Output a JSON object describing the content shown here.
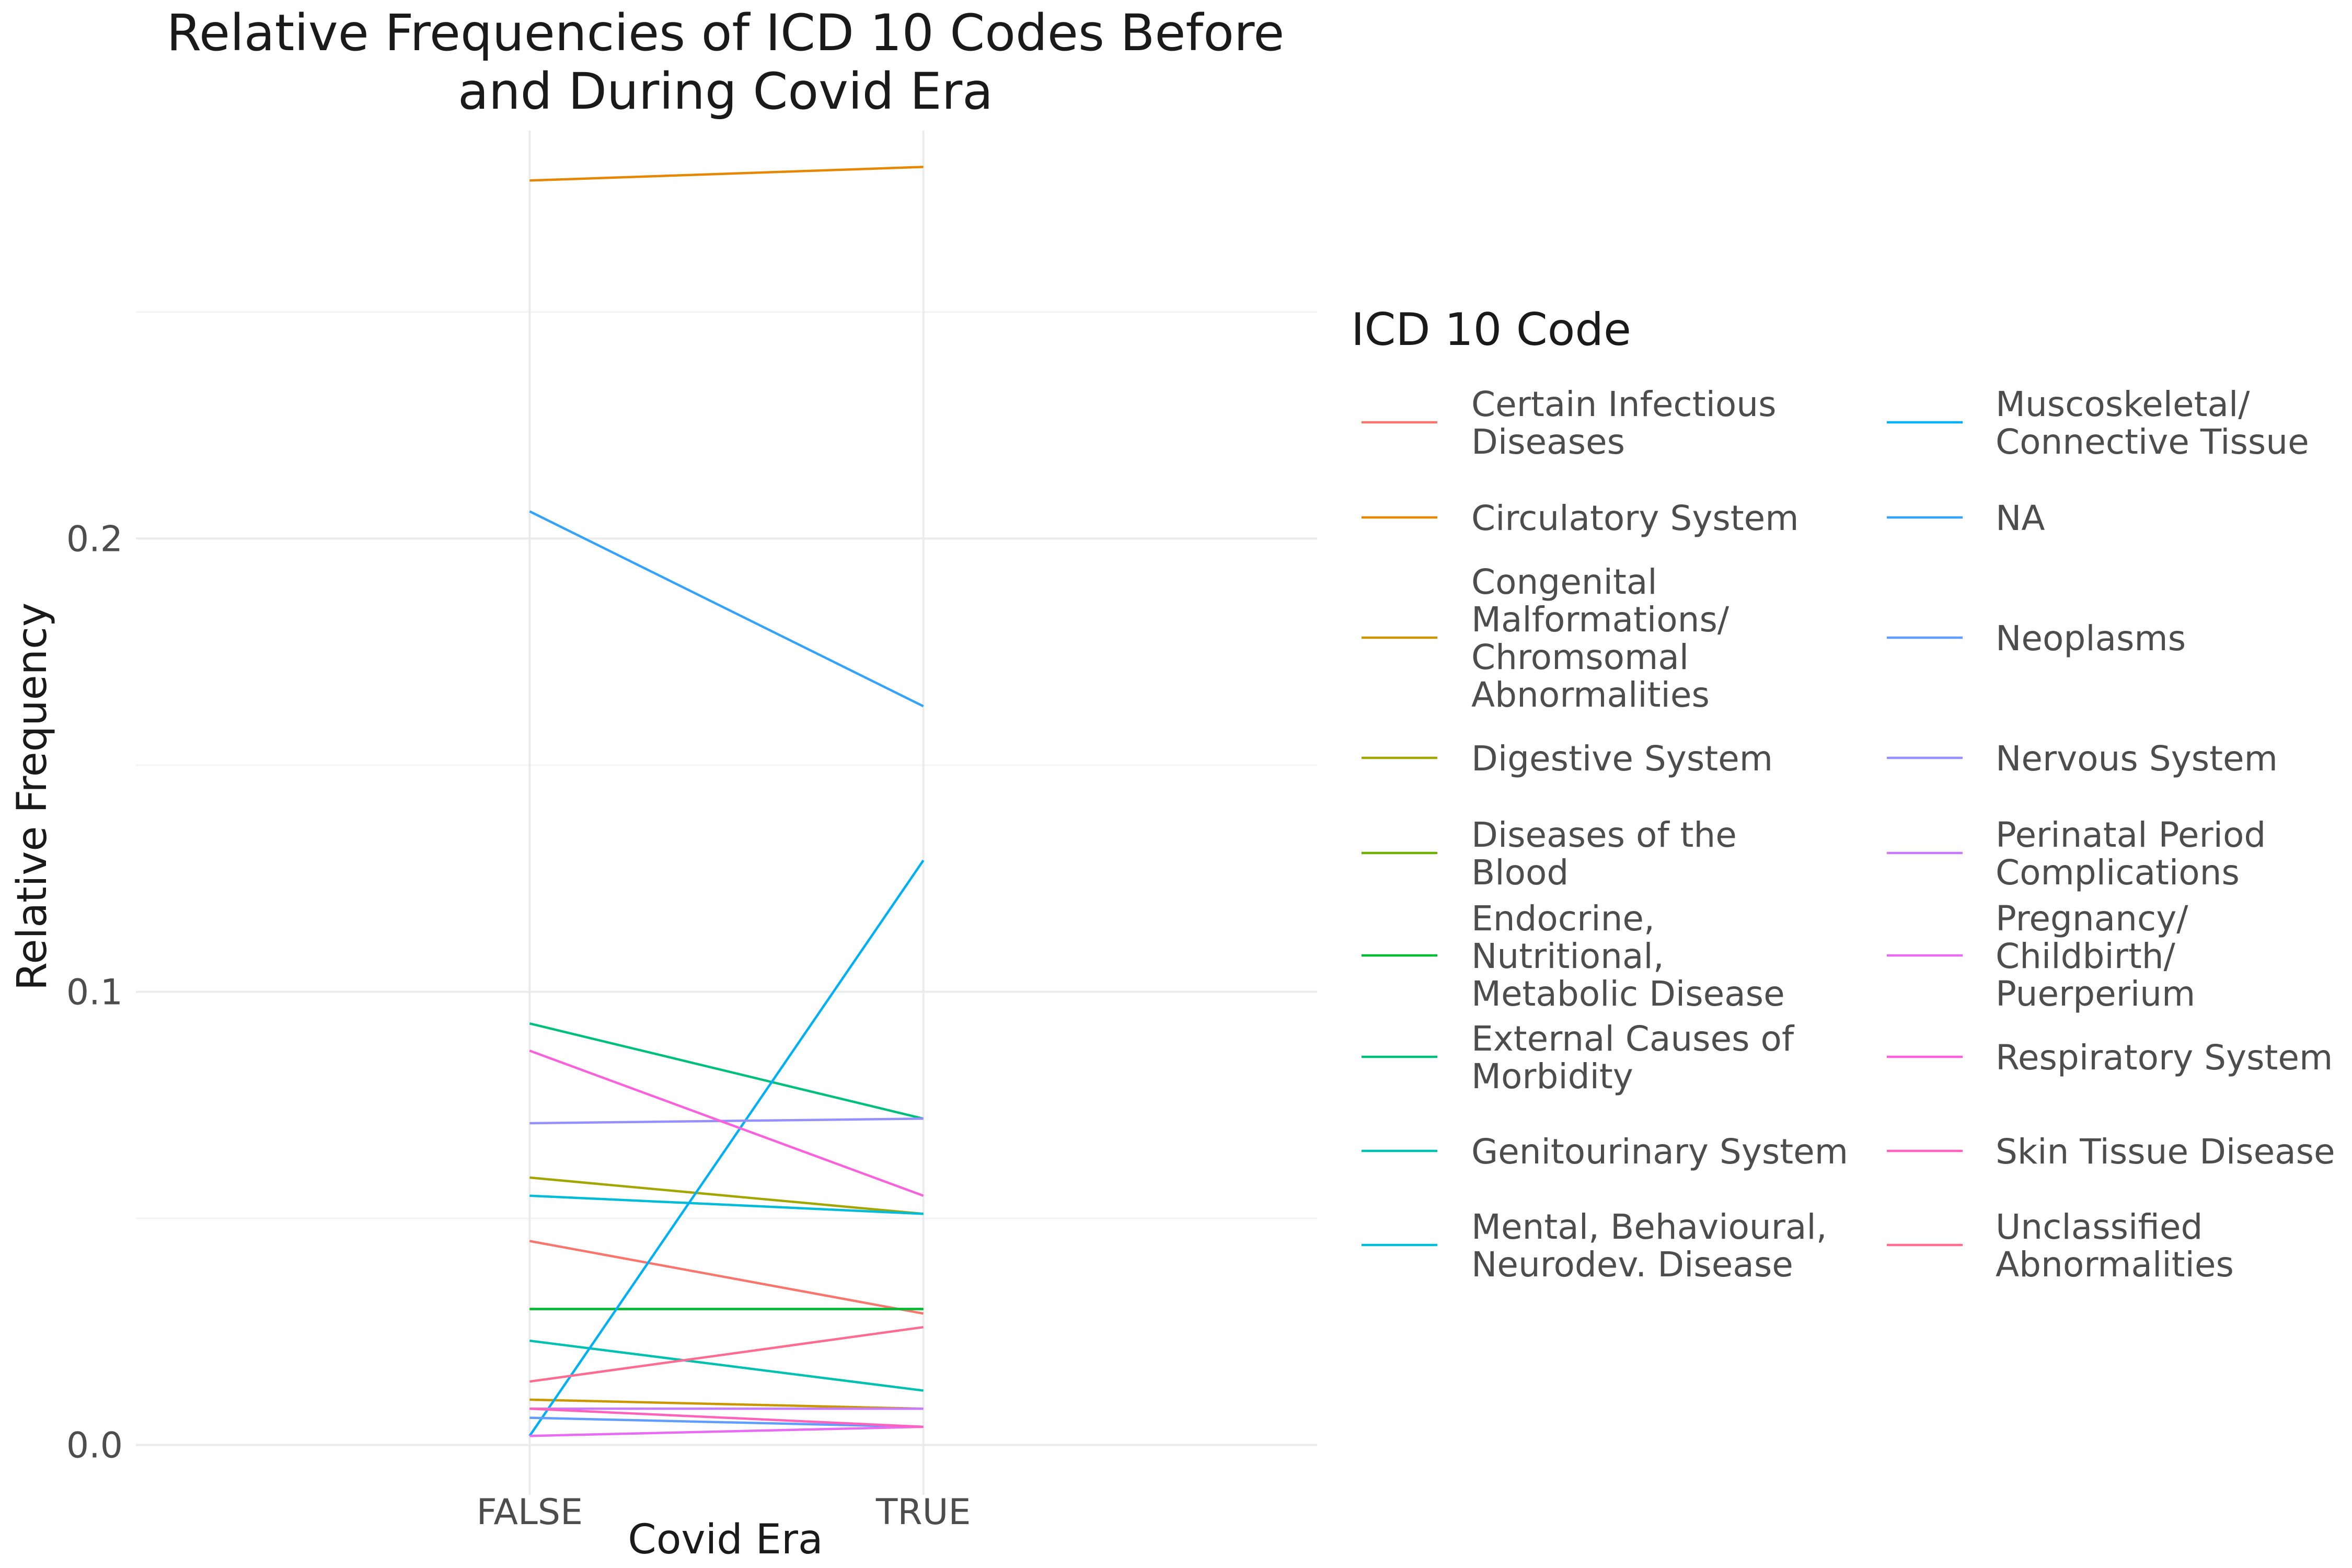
{
  "chart_data": {
    "type": "line",
    "title": "Relative Frequencies of ICD 10 Codes Before and During Covid Era",
    "title_lines": [
      "Relative Frequencies of ICD 10 Codes Before",
      "and During Covid Era"
    ],
    "xlabel": "Covid Era",
    "ylabel": "Relative Frequency",
    "x": [
      "FALSE",
      "TRUE"
    ],
    "ylim": [
      -0.011,
      0.29
    ],
    "y_ticks": [
      0.0,
      0.1,
      0.2
    ],
    "y_tick_labels": [
      "0.0",
      "0.1",
      "0.2"
    ],
    "grid": true,
    "legend": {
      "title": "ICD 10 Code",
      "placement": "right",
      "columns": 2
    },
    "series": [
      {
        "name": "Certain Infectious Diseases",
        "label_lines": [
          "Certain Infectious",
          "Diseases"
        ],
        "color": "#F8766D",
        "values": [
          0.045,
          0.029
        ]
      },
      {
        "name": "Circulatory System",
        "label_lines": [
          "Circulatory System"
        ],
        "color": "#E58700",
        "values": [
          0.279,
          0.282
        ]
      },
      {
        "name": "Congenital Malformations/ Chromsomal Abnormalities",
        "label_lines": [
          "Congenital",
          "Malformations/",
          "Chromsomal",
          "Abnormalities"
        ],
        "color": "#C99800",
        "values": [
          0.01,
          0.008
        ]
      },
      {
        "name": "Digestive System",
        "label_lines": [
          "Digestive System"
        ],
        "color": "#A3A500",
        "values": [
          0.059,
          0.051
        ]
      },
      {
        "name": "Diseases of the Blood",
        "label_lines": [
          "Diseases of the",
          "Blood"
        ],
        "color": "#6BB100",
        "values": [
          0.03,
          0.03
        ]
      },
      {
        "name": "Endocrine, Nutritional, Metabolic Disease",
        "label_lines": [
          "Endocrine,",
          "Nutritional,",
          "Metabolic Disease"
        ],
        "color": "#00BA38",
        "values": [
          0.03,
          0.03
        ]
      },
      {
        "name": "External Causes of Morbidity",
        "label_lines": [
          "External Causes of",
          "Morbidity"
        ],
        "color": "#00BF7D",
        "values": [
          0.093,
          0.072
        ]
      },
      {
        "name": "Genitourinary System",
        "label_lines": [
          "Genitourinary System"
        ],
        "color": "#00C0AF",
        "values": [
          0.023,
          0.012
        ]
      },
      {
        "name": "Mental, Behavioural, Neurodev. Disease",
        "label_lines": [
          "Mental, Behavioural,",
          "Neurodev. Disease"
        ],
        "color": "#00BCD8",
        "values": [
          0.055,
          0.051
        ]
      },
      {
        "name": "Muscoskeletal/ Connective Tissue",
        "label_lines": [
          "Muscoskeletal/",
          "Connective Tissue"
        ],
        "color": "#00B0F6",
        "values": [
          0.002,
          0.129
        ]
      },
      {
        "name": "NA",
        "label_lines": [
          "NA"
        ],
        "color": "#35A2FF",
        "values": [
          0.206,
          0.163
        ]
      },
      {
        "name": "Neoplasms",
        "label_lines": [
          "Neoplasms"
        ],
        "color": "#619CFF",
        "values": [
          0.006,
          0.004
        ]
      },
      {
        "name": "Nervous System",
        "label_lines": [
          "Nervous System"
        ],
        "color": "#9590FF",
        "values": [
          0.071,
          0.072
        ]
      },
      {
        "name": "Perinatal Period Complications",
        "label_lines": [
          "Perinatal Period",
          "Complications"
        ],
        "color": "#C77CFF",
        "values": [
          0.008,
          0.008
        ]
      },
      {
        "name": "Pregnancy/ Childbirth/ Puerperium",
        "label_lines": [
          "Pregnancy/",
          "Childbirth/",
          "Puerperium"
        ],
        "color": "#E76BF3",
        "values": [
          0.002,
          0.004
        ]
      },
      {
        "name": "Respiratory System",
        "label_lines": [
          "Respiratory System"
        ],
        "color": "#FA62DB",
        "values": [
          0.087,
          0.055
        ]
      },
      {
        "name": "Skin Tissue Disease",
        "label_lines": [
          "Skin Tissue Disease"
        ],
        "color": "#FF62BC",
        "values": [
          0.008,
          0.004
        ]
      },
      {
        "name": "Unclassified Abnormalities",
        "label_lines": [
          "Unclassified",
          "Abnormalities"
        ],
        "color": "#FF6C91",
        "values": [
          0.014,
          0.026
        ]
      }
    ]
  }
}
